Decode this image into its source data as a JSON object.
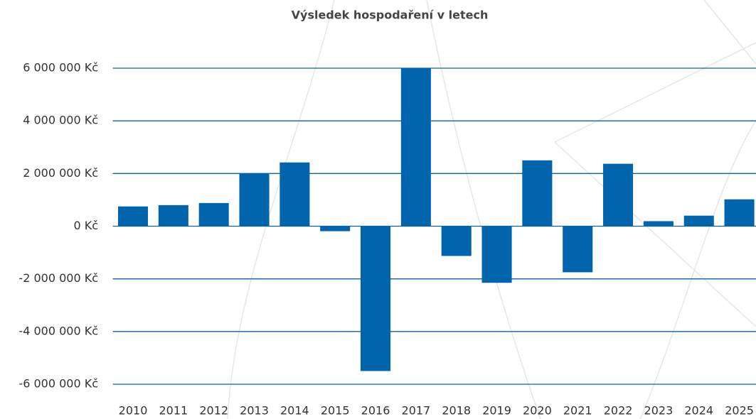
{
  "chart_data": {
    "type": "bar",
    "title": "Výsledek hospodaření v letech",
    "categories": [
      "2010",
      "2011",
      "2012",
      "2013",
      "2014",
      "2015",
      "2016",
      "2017",
      "2018",
      "2019",
      "2020",
      "2021",
      "2022",
      "2023",
      "2024",
      "2025"
    ],
    "values": [
      750000,
      800000,
      880000,
      2000000,
      2420000,
      -190000,
      -5500000,
      6000000,
      -1130000,
      -2150000,
      2500000,
      -1750000,
      2370000,
      190000,
      400000,
      1020000
    ],
    "color": "#0065ac",
    "ylim": [
      -6000000,
      6000000
    ],
    "yticks": [
      {
        "value": -6000000,
        "label": "-6 000 000 Kč"
      },
      {
        "value": -4000000,
        "label": "-4 000 000 Kč"
      },
      {
        "value": -2000000,
        "label": "-2 000 000 Kč"
      },
      {
        "value": 0,
        "label": "0 Kč"
      },
      {
        "value": 2000000,
        "label": "2 000 000 Kč"
      },
      {
        "value": 4000000,
        "label": "4 000 000 Kč"
      },
      {
        "value": 6000000,
        "label": "6 000 000 Kč"
      }
    ],
    "grid": true
  }
}
